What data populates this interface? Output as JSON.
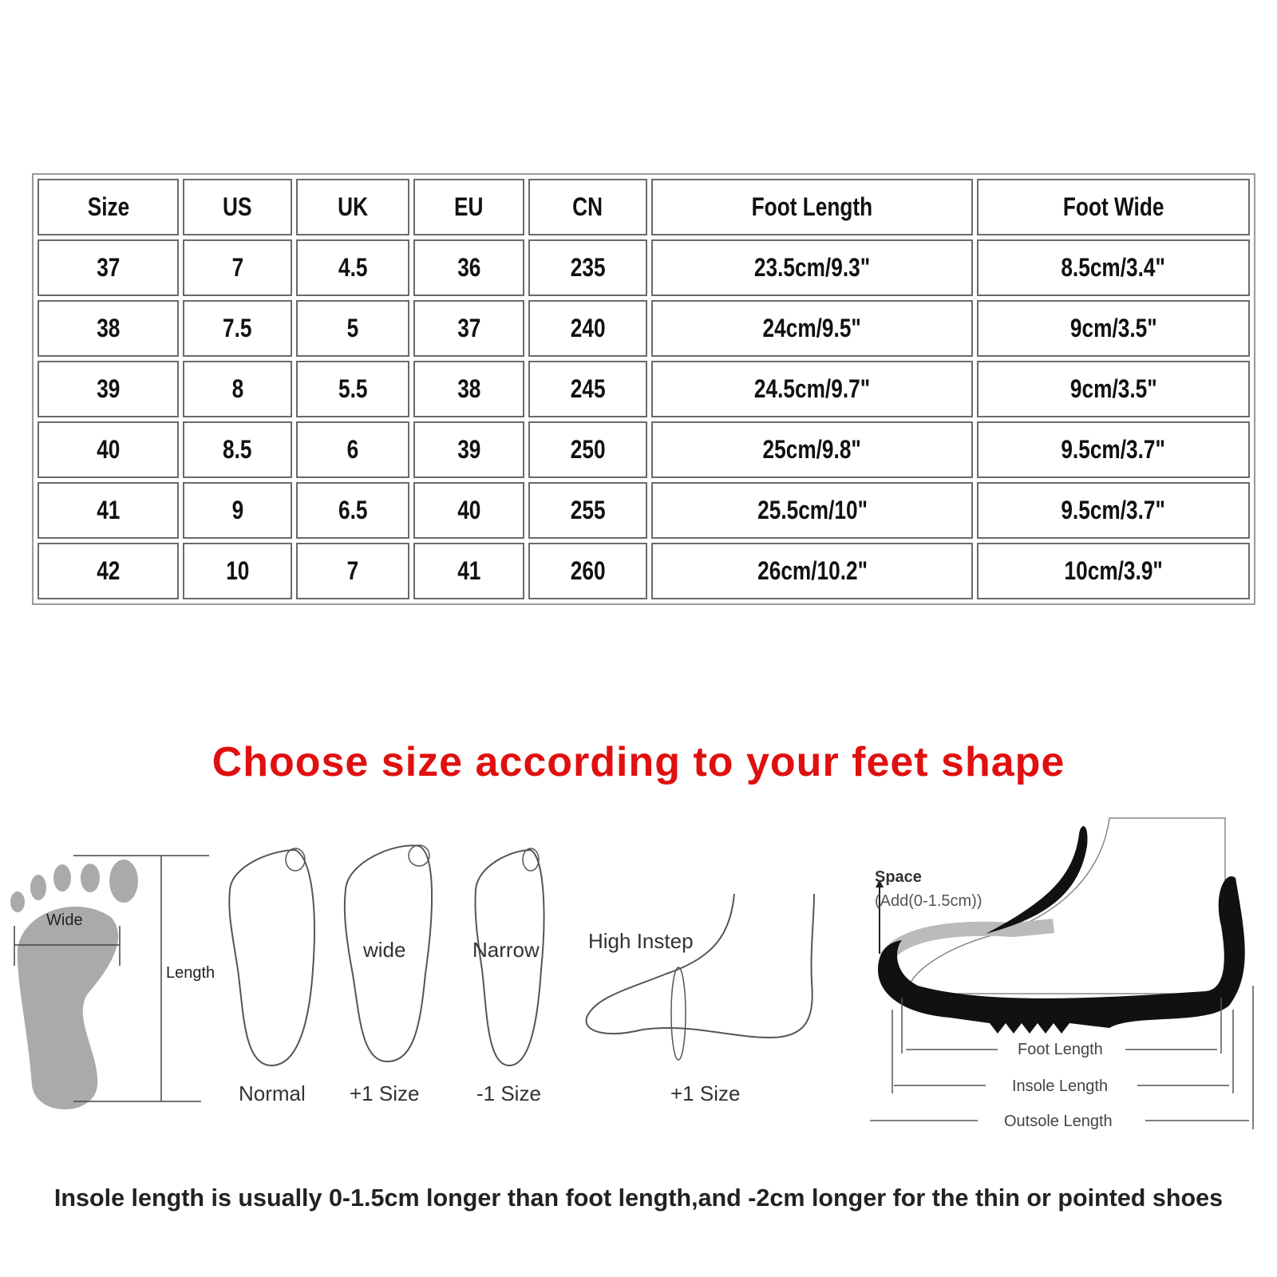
{
  "table": {
    "headers": [
      "Size",
      "US",
      "UK",
      "EU",
      "CN",
      "Foot Length",
      "Foot Wide"
    ],
    "rows": [
      [
        "37",
        "7",
        "4.5",
        "36",
        "235",
        "23.5cm/9.3\"",
        "8.5cm/3.4\""
      ],
      [
        "38",
        "7.5",
        "5",
        "37",
        "240",
        "24cm/9.5\"",
        "9cm/3.5\""
      ],
      [
        "39",
        "8",
        "5.5",
        "38",
        "245",
        "24.5cm/9.7\"",
        "9cm/3.5\""
      ],
      [
        "40",
        "8.5",
        "6",
        "39",
        "250",
        "25cm/9.8\"",
        "9.5cm/3.7\""
      ],
      [
        "41",
        "9",
        "6.5",
        "40",
        "255",
        "25.5cm/10\"",
        "9.5cm/3.7\""
      ],
      [
        "42",
        "10",
        "7",
        "41",
        "260",
        "26cm/10.2\"",
        "10cm/3.9\""
      ]
    ]
  },
  "headline": "Choose size according to your feet shape",
  "headline_color": "#e01010",
  "diagram": {
    "wide_label": "Wide",
    "length_label": "Length",
    "feet": [
      {
        "inner": "",
        "caption": "Normal"
      },
      {
        "inner": "wide",
        "caption": "+1 Size"
      },
      {
        "inner": "Narrow",
        "caption": "-1 Size"
      },
      {
        "inner": "High Instep",
        "caption": "+1 Size"
      }
    ],
    "shoe": {
      "space": "Space",
      "space_note": "(Add(0-1.5cm))",
      "foot_length": "Foot Length",
      "insole_length": "Insole Length",
      "outsole_length": "Outsole Length"
    }
  },
  "footnote": "Insole length is usually 0-1.5cm longer than foot length,and -2cm longer for the thin or pointed shoes"
}
